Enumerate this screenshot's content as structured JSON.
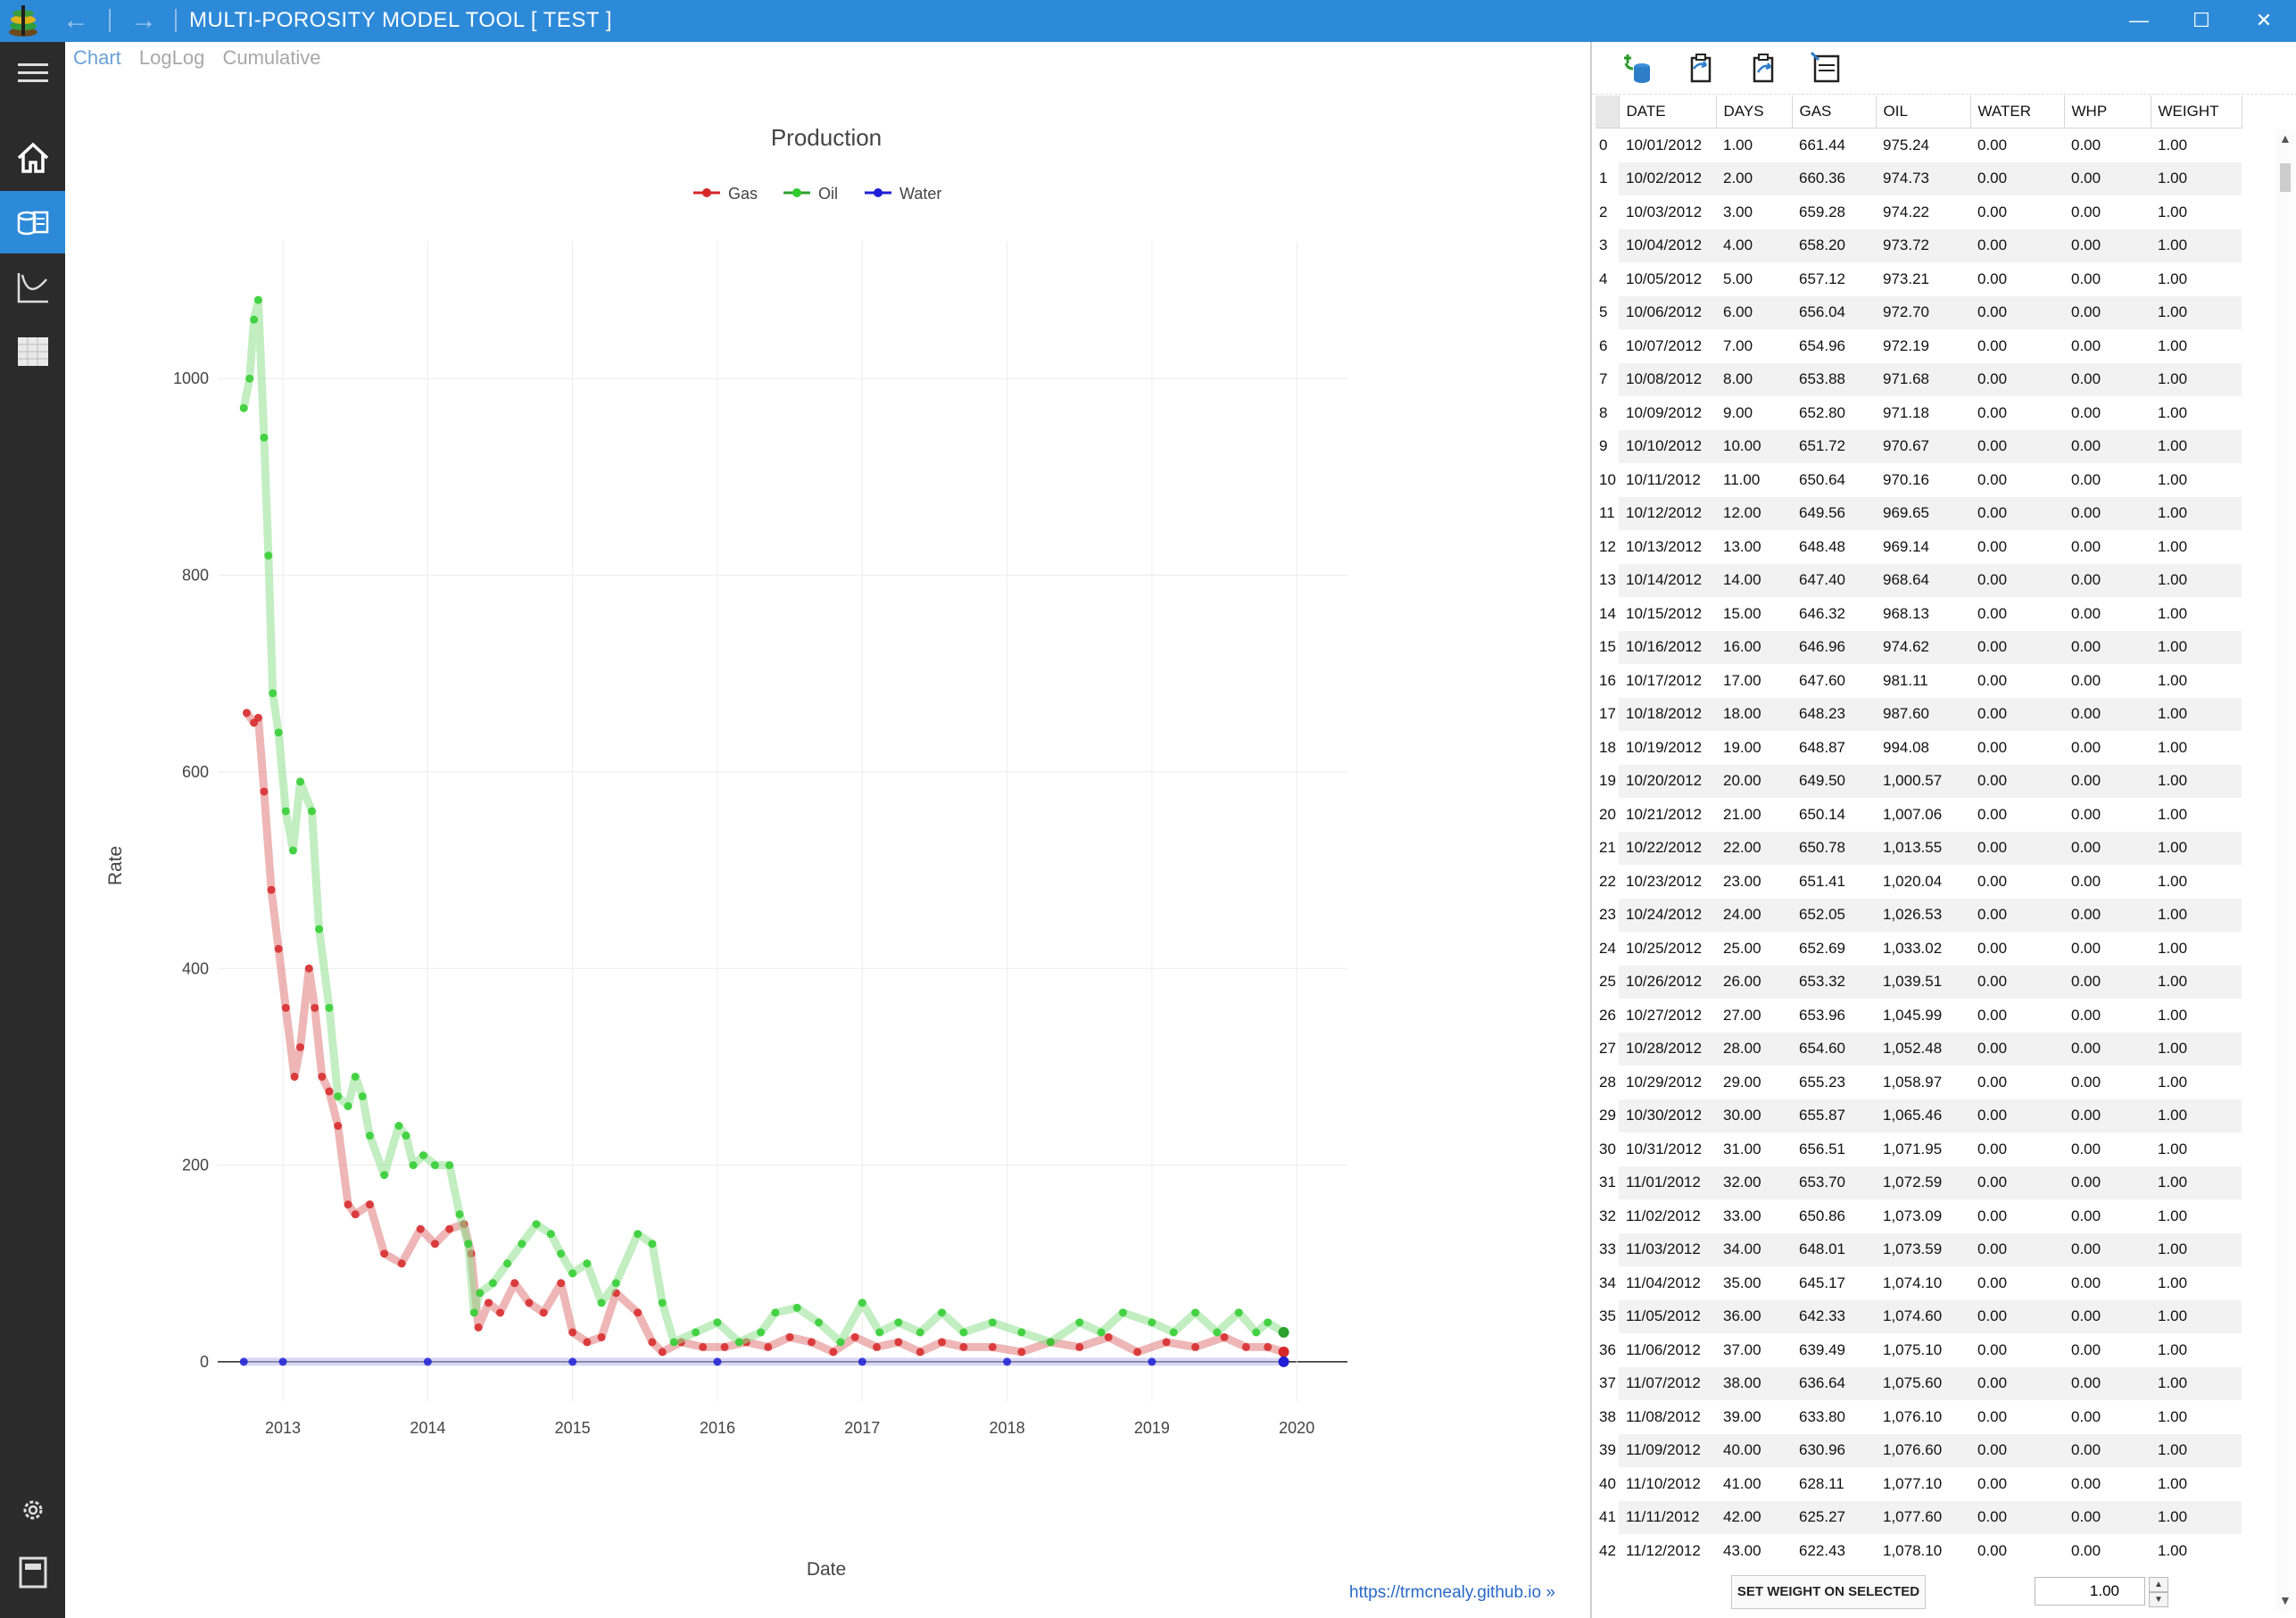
{
  "window": {
    "title": "MULTI-POROSITY MODEL TOOL [ TEST ]",
    "back_glyph": "←",
    "forward_glyph": "→",
    "minimize_glyph": "—",
    "maximize_glyph": "☐",
    "close_glyph": "✕"
  },
  "sidebar": {
    "items": [
      {
        "name": "menu-icon"
      },
      {
        "name": "home-icon"
      },
      {
        "name": "data-icon",
        "active": true
      },
      {
        "name": "curve-icon"
      },
      {
        "name": "grid-icon"
      },
      {
        "name": "settings-icon"
      },
      {
        "name": "notebook-icon"
      }
    ]
  },
  "tabs": [
    {
      "label": "Chart",
      "active": true
    },
    {
      "label": "LogLog",
      "active": false
    },
    {
      "label": "Cumulative",
      "active": false
    }
  ],
  "chart_data": {
    "type": "scatter",
    "title": "Production",
    "xlabel": "Date",
    "ylabel": "Rate",
    "xlim": [
      2012.55,
      2020.35
    ],
    "ylim": [
      -40,
      1140
    ],
    "x_ticks": [
      "2013",
      "2014",
      "2015",
      "2016",
      "2017",
      "2018",
      "2019",
      "2020"
    ],
    "y_ticks": [
      "0",
      "200",
      "400",
      "600",
      "800",
      "1000"
    ],
    "legend_position": "top-center",
    "grid": true,
    "series": [
      {
        "name": "Gas",
        "color": "#d62728",
        "x": [
          2012.75,
          2012.8,
          2012.83,
          2012.87,
          2012.92,
          2012.97,
          2013.02,
          2013.08,
          2013.12,
          2013.18,
          2013.22,
          2013.27,
          2013.32,
          2013.38,
          2013.45,
          2013.5,
          2013.6,
          2013.7,
          2013.82,
          2013.95,
          2014.05,
          2014.15,
          2014.25,
          2014.3,
          2014.35,
          2014.42,
          2014.5,
          2014.6,
          2014.7,
          2014.8,
          2014.92,
          2015.0,
          2015.1,
          2015.2,
          2015.3,
          2015.45,
          2015.55,
          2015.62,
          2015.75,
          2015.9,
          2016.05,
          2016.2,
          2016.35,
          2016.5,
          2016.65,
          2016.8,
          2016.95,
          2017.1,
          2017.25,
          2017.4,
          2017.55,
          2017.7,
          2017.9,
          2018.1,
          2018.3,
          2018.5,
          2018.7,
          2018.9,
          2019.1,
          2019.3,
          2019.5,
          2019.65,
          2019.8,
          2019.91
        ],
        "y": [
          660,
          650,
          655,
          580,
          480,
          420,
          360,
          290,
          320,
          400,
          360,
          290,
          275,
          240,
          160,
          150,
          160,
          110,
          100,
          135,
          120,
          135,
          140,
          110,
          35,
          60,
          50,
          80,
          60,
          50,
          80,
          30,
          20,
          25,
          70,
          50,
          20,
          10,
          20,
          15,
          15,
          20,
          15,
          25,
          20,
          10,
          25,
          15,
          20,
          10,
          20,
          15,
          15,
          10,
          20,
          15,
          25,
          10,
          20,
          15,
          25,
          15,
          15,
          10
        ]
      },
      {
        "name": "Oil",
        "color": "#2ca02c",
        "x": [
          2012.73,
          2012.77,
          2012.8,
          2012.83,
          2012.87,
          2012.9,
          2012.93,
          2012.97,
          2013.02,
          2013.07,
          2013.12,
          2013.2,
          2013.25,
          2013.32,
          2013.38,
          2013.45,
          2013.5,
          2013.55,
          2013.6,
          2013.7,
          2013.8,
          2013.85,
          2013.9,
          2013.97,
          2014.05,
          2014.15,
          2014.22,
          2014.28,
          2014.32,
          2014.36,
          2014.45,
          2014.55,
          2014.65,
          2014.75,
          2014.85,
          2014.92,
          2015.0,
          2015.1,
          2015.2,
          2015.3,
          2015.45,
          2015.55,
          2015.62,
          2015.7,
          2015.85,
          2016.0,
          2016.15,
          2016.3,
          2016.4,
          2016.55,
          2016.7,
          2016.85,
          2017.0,
          2017.12,
          2017.25,
          2017.4,
          2017.55,
          2017.7,
          2017.9,
          2018.1,
          2018.3,
          2018.5,
          2018.65,
          2018.8,
          2019.0,
          2019.15,
          2019.3,
          2019.45,
          2019.6,
          2019.72,
          2019.8,
          2019.91
        ],
        "y": [
          970,
          1000,
          1060,
          1080,
          940,
          820,
          680,
          640,
          560,
          520,
          590,
          560,
          440,
          360,
          270,
          260,
          290,
          270,
          230,
          190,
          240,
          230,
          200,
          210,
          200,
          200,
          150,
          120,
          50,
          70,
          80,
          100,
          120,
          140,
          130,
          110,
          90,
          100,
          60,
          80,
          130,
          120,
          60,
          20,
          30,
          40,
          20,
          30,
          50,
          55,
          40,
          20,
          60,
          30,
          40,
          30,
          50,
          30,
          40,
          30,
          20,
          40,
          30,
          50,
          40,
          30,
          50,
          30,
          50,
          30,
          40,
          30
        ]
      },
      {
        "name": "Water",
        "color": "#1f1fd6",
        "x": [
          2012.73,
          2013.0,
          2014.0,
          2015.0,
          2016.0,
          2017.0,
          2018.0,
          2019.0,
          2019.91
        ],
        "y": [
          0,
          0,
          0,
          0,
          0,
          0,
          0,
          0,
          0
        ]
      }
    ]
  },
  "footer_link": "https://trmcnealy.github.io »",
  "toolbar": {
    "buttons": [
      {
        "name": "import-data-icon"
      },
      {
        "name": "paste-icon"
      },
      {
        "name": "copy-icon"
      },
      {
        "name": "export-icon"
      }
    ]
  },
  "grid": {
    "columns": [
      "DATE",
      "DAYS",
      "GAS",
      "OIL",
      "WATER",
      "WHP",
      "WEIGHT"
    ],
    "rows": [
      [
        "0",
        "10/01/2012",
        "1.00",
        "661.44",
        "975.24",
        "0.00",
        "0.00",
        "1.00"
      ],
      [
        "1",
        "10/02/2012",
        "2.00",
        "660.36",
        "974.73",
        "0.00",
        "0.00",
        "1.00"
      ],
      [
        "2",
        "10/03/2012",
        "3.00",
        "659.28",
        "974.22",
        "0.00",
        "0.00",
        "1.00"
      ],
      [
        "3",
        "10/04/2012",
        "4.00",
        "658.20",
        "973.72",
        "0.00",
        "0.00",
        "1.00"
      ],
      [
        "4",
        "10/05/2012",
        "5.00",
        "657.12",
        "973.21",
        "0.00",
        "0.00",
        "1.00"
      ],
      [
        "5",
        "10/06/2012",
        "6.00",
        "656.04",
        "972.70",
        "0.00",
        "0.00",
        "1.00"
      ],
      [
        "6",
        "10/07/2012",
        "7.00",
        "654.96",
        "972.19",
        "0.00",
        "0.00",
        "1.00"
      ],
      [
        "7",
        "10/08/2012",
        "8.00",
        "653.88",
        "971.68",
        "0.00",
        "0.00",
        "1.00"
      ],
      [
        "8",
        "10/09/2012",
        "9.00",
        "652.80",
        "971.18",
        "0.00",
        "0.00",
        "1.00"
      ],
      [
        "9",
        "10/10/2012",
        "10.00",
        "651.72",
        "970.67",
        "0.00",
        "0.00",
        "1.00"
      ],
      [
        "10",
        "10/11/2012",
        "11.00",
        "650.64",
        "970.16",
        "0.00",
        "0.00",
        "1.00"
      ],
      [
        "11",
        "10/12/2012",
        "12.00",
        "649.56",
        "969.65",
        "0.00",
        "0.00",
        "1.00"
      ],
      [
        "12",
        "10/13/2012",
        "13.00",
        "648.48",
        "969.14",
        "0.00",
        "0.00",
        "1.00"
      ],
      [
        "13",
        "10/14/2012",
        "14.00",
        "647.40",
        "968.64",
        "0.00",
        "0.00",
        "1.00"
      ],
      [
        "14",
        "10/15/2012",
        "15.00",
        "646.32",
        "968.13",
        "0.00",
        "0.00",
        "1.00"
      ],
      [
        "15",
        "10/16/2012",
        "16.00",
        "646.96",
        "974.62",
        "0.00",
        "0.00",
        "1.00"
      ],
      [
        "16",
        "10/17/2012",
        "17.00",
        "647.60",
        "981.11",
        "0.00",
        "0.00",
        "1.00"
      ],
      [
        "17",
        "10/18/2012",
        "18.00",
        "648.23",
        "987.60",
        "0.00",
        "0.00",
        "1.00"
      ],
      [
        "18",
        "10/19/2012",
        "19.00",
        "648.87",
        "994.08",
        "0.00",
        "0.00",
        "1.00"
      ],
      [
        "19",
        "10/20/2012",
        "20.00",
        "649.50",
        "1,000.57",
        "0.00",
        "0.00",
        "1.00"
      ],
      [
        "20",
        "10/21/2012",
        "21.00",
        "650.14",
        "1,007.06",
        "0.00",
        "0.00",
        "1.00"
      ],
      [
        "21",
        "10/22/2012",
        "22.00",
        "650.78",
        "1,013.55",
        "0.00",
        "0.00",
        "1.00"
      ],
      [
        "22",
        "10/23/2012",
        "23.00",
        "651.41",
        "1,020.04",
        "0.00",
        "0.00",
        "1.00"
      ],
      [
        "23",
        "10/24/2012",
        "24.00",
        "652.05",
        "1,026.53",
        "0.00",
        "0.00",
        "1.00"
      ],
      [
        "24",
        "10/25/2012",
        "25.00",
        "652.69",
        "1,033.02",
        "0.00",
        "0.00",
        "1.00"
      ],
      [
        "25",
        "10/26/2012",
        "26.00",
        "653.32",
        "1,039.51",
        "0.00",
        "0.00",
        "1.00"
      ],
      [
        "26",
        "10/27/2012",
        "27.00",
        "653.96",
        "1,045.99",
        "0.00",
        "0.00",
        "1.00"
      ],
      [
        "27",
        "10/28/2012",
        "28.00",
        "654.60",
        "1,052.48",
        "0.00",
        "0.00",
        "1.00"
      ],
      [
        "28",
        "10/29/2012",
        "29.00",
        "655.23",
        "1,058.97",
        "0.00",
        "0.00",
        "1.00"
      ],
      [
        "29",
        "10/30/2012",
        "30.00",
        "655.87",
        "1,065.46",
        "0.00",
        "0.00",
        "1.00"
      ],
      [
        "30",
        "10/31/2012",
        "31.00",
        "656.51",
        "1,071.95",
        "0.00",
        "0.00",
        "1.00"
      ],
      [
        "31",
        "11/01/2012",
        "32.00",
        "653.70",
        "1,072.59",
        "0.00",
        "0.00",
        "1.00"
      ],
      [
        "32",
        "11/02/2012",
        "33.00",
        "650.86",
        "1,073.09",
        "0.00",
        "0.00",
        "1.00"
      ],
      [
        "33",
        "11/03/2012",
        "34.00",
        "648.01",
        "1,073.59",
        "0.00",
        "0.00",
        "1.00"
      ],
      [
        "34",
        "11/04/2012",
        "35.00",
        "645.17",
        "1,074.10",
        "0.00",
        "0.00",
        "1.00"
      ],
      [
        "35",
        "11/05/2012",
        "36.00",
        "642.33",
        "1,074.60",
        "0.00",
        "0.00",
        "1.00"
      ],
      [
        "36",
        "11/06/2012",
        "37.00",
        "639.49",
        "1,075.10",
        "0.00",
        "0.00",
        "1.00"
      ],
      [
        "37",
        "11/07/2012",
        "38.00",
        "636.64",
        "1,075.60",
        "0.00",
        "0.00",
        "1.00"
      ],
      [
        "38",
        "11/08/2012",
        "39.00",
        "633.80",
        "1,076.10",
        "0.00",
        "0.00",
        "1.00"
      ],
      [
        "39",
        "11/09/2012",
        "40.00",
        "630.96",
        "1,076.60",
        "0.00",
        "0.00",
        "1.00"
      ],
      [
        "40",
        "11/10/2012",
        "41.00",
        "628.11",
        "1,077.10",
        "0.00",
        "0.00",
        "1.00"
      ],
      [
        "41",
        "11/11/2012",
        "42.00",
        "625.27",
        "1,077.60",
        "0.00",
        "0.00",
        "1.00"
      ],
      [
        "42",
        "11/12/2012",
        "43.00",
        "622.43",
        "1,078.10",
        "0.00",
        "0.00",
        "1.00"
      ]
    ]
  },
  "set_weight_button": "SET WEIGHT ON SELECTED",
  "weight_input_value": "1.00",
  "spin_up_glyph": "▲",
  "spin_down_glyph": "▼",
  "scroll_up_glyph": "▲",
  "scroll_down_glyph": "▼"
}
